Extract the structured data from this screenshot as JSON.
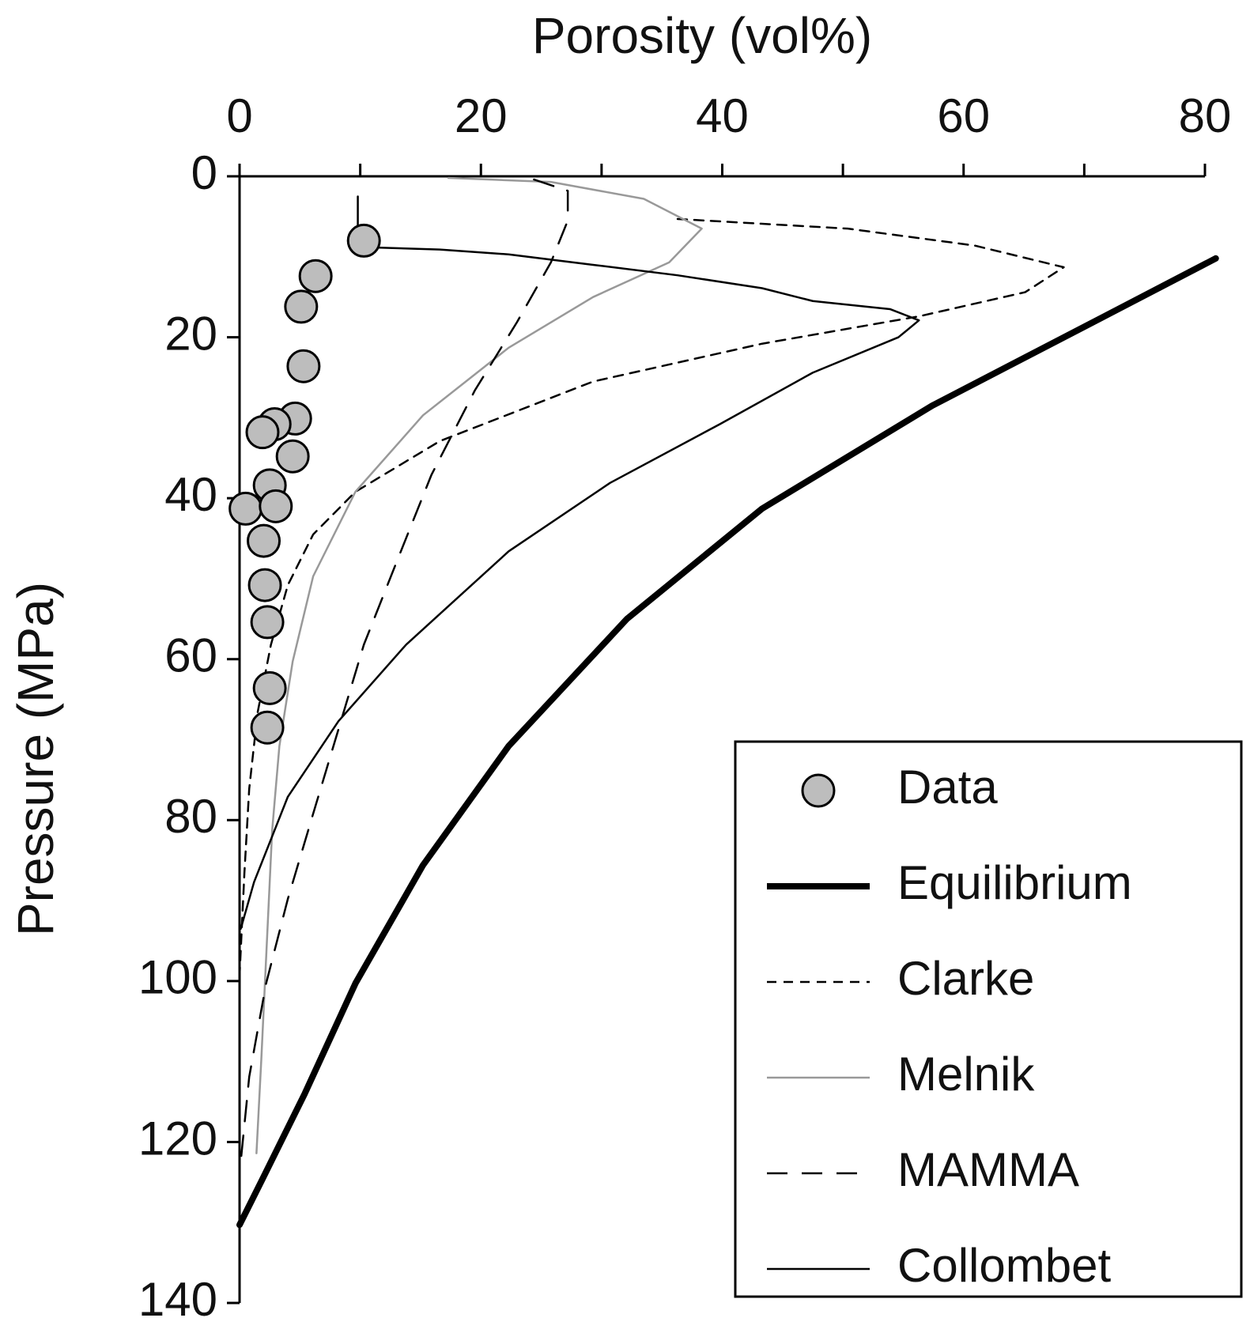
{
  "chart_data": {
    "type": "line",
    "x_label": "Porosity (vol%)",
    "y_label": "Pressure (MPa)",
    "xlim": [
      0,
      80
    ],
    "xticks": [
      0,
      20,
      40,
      60,
      80
    ],
    "xminorticks": [
      10,
      30,
      50,
      70
    ],
    "ylim": [
      0,
      140
    ],
    "yticks": [
      0,
      20,
      40,
      60,
      80,
      100,
      120,
      140
    ],
    "y_reversed": true,
    "x_axis_position": "top",
    "legend": "bottom-right",
    "series": [
      {
        "name": "Data",
        "type": "scatter",
        "color": "#bdbdbd",
        "x": [
          10.3,
          6.3,
          5.1,
          5.3,
          4.6,
          2.9,
          1.9,
          4.4,
          2.5,
          0.5,
          3.0,
          2.0,
          2.1,
          2.3,
          2.5,
          2.3
        ],
        "values": [
          8.0,
          12.4,
          16.2,
          23.6,
          30.1,
          30.8,
          31.8,
          34.8,
          38.4,
          41.3,
          41.0,
          45.3,
          50.8,
          55.4,
          63.6,
          68.5
        ]
      },
      {
        "name": "Equilibrium",
        "type": "line",
        "color": "#000000",
        "width": "thick",
        "dash": "solid",
        "x": [
          80.9,
          70,
          57.4,
          43.3,
          32.1,
          22.3,
          15.2,
          9.6,
          5.4,
          1.9,
          0
        ],
        "values": [
          10.2,
          18.7,
          28.5,
          41.3,
          55,
          70.8,
          85.6,
          100.3,
          114,
          124.6,
          130.3
        ]
      },
      {
        "name": "Clarke",
        "type": "line",
        "color": "#000000",
        "width": "thin",
        "dash": "dotted",
        "x": [
          36.3,
          50.4,
          60.9,
          68.3,
          65.1,
          56.3,
          43.3,
          29.3,
          16.6,
          9.6,
          6.1,
          4.0,
          2.6,
          1.5,
          0.8,
          0.4,
          0,
          0
        ],
        "values": [
          5.3,
          6.5,
          8.6,
          11.3,
          14.4,
          17.4,
          20.8,
          25.5,
          32.9,
          39.2,
          44.5,
          50.8,
          58.2,
          66.6,
          76.1,
          86.6,
          99.3,
          129.8
        ]
      },
      {
        "name": "Melnik",
        "type": "line",
        "color": "#999999",
        "width": "thin",
        "dash": "solid",
        "x": [
          17.3,
          25.8,
          33.5,
          38.3,
          35.6,
          29.3,
          22.3,
          15.2,
          9.6,
          6.1,
          4.4,
          3.3,
          2.7,
          2.3,
          1.8,
          1.4
        ],
        "values": [
          0.2,
          0.7,
          2.8,
          6.5,
          10.7,
          15,
          21.3,
          29.7,
          39.2,
          49.7,
          60.3,
          70.8,
          81.3,
          94,
          109.8,
          121.4
        ]
      },
      {
        "name": "MAMMA",
        "type": "line",
        "color": "#000000",
        "width": "thin",
        "dash": "dashed",
        "x": [
          24.4,
          27.2,
          27.2,
          25.8,
          23,
          19.5,
          15.9,
          13.1,
          10.3,
          8.2,
          6.1,
          4.0,
          2.2,
          0.8,
          0.1
        ],
        "values": [
          0.4,
          1.8,
          5.5,
          10.7,
          18.1,
          26.6,
          37.1,
          47.6,
          58.2,
          68.7,
          79.2,
          89.8,
          100.3,
          111.9,
          122.4
        ]
      },
      {
        "name": "Collombet",
        "type": "line",
        "color": "#000000",
        "width": "thin",
        "dash": "solid",
        "x": [
          9.8,
          9.8,
          10.3,
          16.6,
          22.3,
          29.3,
          36.3,
          43.3,
          47.5,
          53.9,
          56.3,
          54.6,
          47.5,
          39.8,
          30.7,
          22.3,
          13.8,
          8.2,
          4.0,
          1.2,
          0.1
        ],
        "values": [
          2.5,
          8.3,
          8.8,
          9.1,
          9.7,
          11,
          12.3,
          13.9,
          15.5,
          16.5,
          17.9,
          20,
          24.4,
          30.8,
          38.1,
          46.6,
          58.2,
          67.7,
          77.1,
          87.7,
          93.5
        ]
      }
    ]
  }
}
